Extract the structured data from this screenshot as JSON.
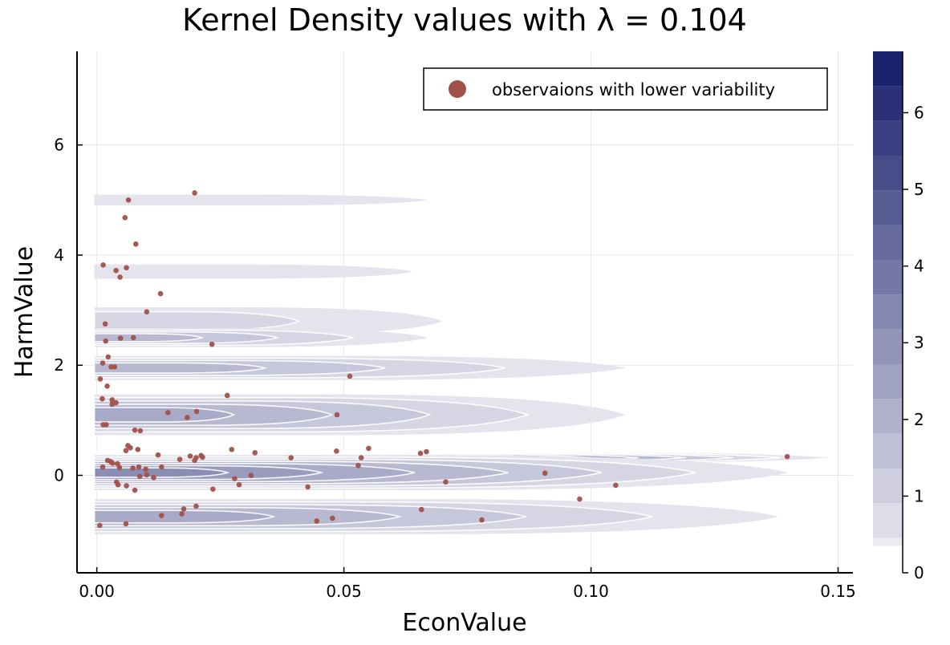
{
  "chart_data": {
    "type": "contour",
    "title": "Kernel Density values with λ = 0.104",
    "xlabel": "EconValue",
    "ylabel": "HarmValue",
    "xlim": [
      -0.004,
      0.153
    ],
    "ylim": [
      -1.77,
      7.7
    ],
    "x_ticks": [
      0.0,
      0.05,
      0.1,
      0.15
    ],
    "x_tick_labels": [
      "0.00",
      "0.05",
      "0.10",
      "0.15"
    ],
    "y_ticks": [
      0,
      2,
      4,
      6
    ],
    "y_tick_labels": [
      "0",
      "2",
      "4",
      "6"
    ],
    "grid": true,
    "legend": {
      "placement": "top-right",
      "entries": [
        {
          "name": "observaions with lower variability",
          "color": "#a0524a",
          "marker": "circle"
        }
      ]
    },
    "colorbar": {
      "min": 0,
      "max": 6.8,
      "ticks": [
        0,
        1,
        2,
        3,
        4,
        5,
        6
      ],
      "tick_labels": [
        "0",
        "1",
        "2",
        "3",
        "4",
        "5",
        "6"
      ],
      "levels": 15,
      "color_low": "#f3f2f6",
      "color_high": "#141b68"
    },
    "density_bands": [
      {
        "y_center": 5.0,
        "half_height": 0.1,
        "x_extent": 0.067,
        "peak": 0.6
      },
      {
        "y_center": 3.7,
        "half_height": 0.13,
        "x_extent": 0.064,
        "peak": 0.6
      },
      {
        "y_center": 2.8,
        "half_height": 0.25,
        "x_extent": 0.07,
        "peak": 0.8
      },
      {
        "y_center": 2.5,
        "half_height": 0.17,
        "x_extent": 0.067,
        "peak": 1.9
      },
      {
        "y_center": 1.95,
        "half_height": 0.22,
        "x_extent": 0.107,
        "peak": 1.9
      },
      {
        "y_center": 1.1,
        "half_height": 0.37,
        "x_extent": 0.107,
        "peak": 2.1
      },
      {
        "y_center": 0.32,
        "half_height": 0.12,
        "x_extent": 0.148,
        "peak": 6.8
      },
      {
        "y_center": 0.05,
        "half_height": 0.32,
        "x_extent": 0.14,
        "peak": 3.0
      },
      {
        "y_center": -0.75,
        "half_height": 0.32,
        "x_extent": 0.138,
        "peak": 2.4
      }
    ],
    "series": [
      {
        "name": "observaions with lower variability",
        "type": "scatter",
        "color": "#a0524a",
        "points": [
          [
            0.0198,
            5.13
          ],
          [
            0.0064,
            5.0
          ],
          [
            0.0057,
            4.68
          ],
          [
            0.0079,
            4.2
          ],
          [
            0.0013,
            3.82
          ],
          [
            0.006,
            3.77
          ],
          [
            0.0039,
            3.72
          ],
          [
            0.0047,
            3.6
          ],
          [
            0.0129,
            3.3
          ],
          [
            0.0101,
            2.97
          ],
          [
            0.0017,
            2.75
          ],
          [
            0.0018,
            2.44
          ],
          [
            0.0048,
            2.49
          ],
          [
            0.0074,
            2.5
          ],
          [
            0.0233,
            2.38
          ],
          [
            0.0023,
            2.15
          ],
          [
            0.0012,
            2.04
          ],
          [
            0.0029,
            1.97
          ],
          [
            0.0036,
            1.97
          ],
          [
            0.0007,
            1.75
          ],
          [
            0.0512,
            1.8
          ],
          [
            0.0021,
            1.62
          ],
          [
            0.0264,
            1.45
          ],
          [
            0.0011,
            1.39
          ],
          [
            0.0031,
            1.37
          ],
          [
            0.0039,
            1.32
          ],
          [
            0.0031,
            1.29
          ],
          [
            0.0144,
            1.14
          ],
          [
            0.0202,
            1.16
          ],
          [
            0.0183,
            1.05
          ],
          [
            0.0486,
            1.1
          ],
          [
            0.0013,
            0.92
          ],
          [
            0.0019,
            0.92
          ],
          [
            0.0077,
            0.82
          ],
          [
            0.0088,
            0.81
          ],
          [
            0.0063,
            0.54
          ],
          [
            0.0068,
            0.5
          ],
          [
            0.0083,
            0.47
          ],
          [
            0.0059,
            0.45
          ],
          [
            0.0124,
            0.37
          ],
          [
            0.0273,
            0.47
          ],
          [
            0.032,
            0.41
          ],
          [
            0.0485,
            0.44
          ],
          [
            0.055,
            0.49
          ],
          [
            0.0655,
            0.4
          ],
          [
            0.0667,
            0.43
          ],
          [
            0.0535,
            0.32
          ],
          [
            0.0189,
            0.35
          ],
          [
            0.0211,
            0.36
          ],
          [
            0.0201,
            0.32
          ],
          [
            0.0214,
            0.33
          ],
          [
            0.0168,
            0.29
          ],
          [
            0.0198,
            0.27
          ],
          [
            0.0042,
            0.21
          ],
          [
            0.0022,
            0.27
          ],
          [
            0.0028,
            0.25
          ],
          [
            0.0032,
            0.22
          ],
          [
            0.0012,
            0.15
          ],
          [
            0.0046,
            0.14
          ],
          [
            0.0085,
            0.15
          ],
          [
            0.0073,
            0.13
          ],
          [
            0.0099,
            0.11
          ],
          [
            0.0131,
            0.15
          ],
          [
            0.0529,
            0.18
          ],
          [
            0.0393,
            0.32
          ],
          [
            0.0101,
            0.01
          ],
          [
            0.0115,
            -0.04
          ],
          [
            0.0087,
            -0.02
          ],
          [
            0.004,
            -0.12
          ],
          [
            0.0043,
            -0.17
          ],
          [
            0.006,
            -0.19
          ],
          [
            0.0077,
            -0.27
          ],
          [
            0.0279,
            -0.06
          ],
          [
            0.0288,
            -0.17
          ],
          [
            0.0312,
            0.0
          ],
          [
            0.0235,
            -0.25
          ],
          [
            0.0427,
            -0.21
          ],
          [
            0.0706,
            -0.12
          ],
          [
            0.0907,
            0.04
          ],
          [
            0.105,
            -0.18
          ],
          [
            0.0977,
            -0.43
          ],
          [
            0.1397,
            0.34
          ],
          [
            0.0131,
            -0.73
          ],
          [
            0.0176,
            -0.61
          ],
          [
            0.0172,
            -0.7
          ],
          [
            0.0201,
            -0.56
          ],
          [
            0.0657,
            -0.62
          ],
          [
            0.0445,
            -0.83
          ],
          [
            0.0477,
            -0.78
          ],
          [
            0.0779,
            -0.81
          ],
          [
            0.0006,
            -0.91
          ],
          [
            0.0059,
            -0.88
          ]
        ]
      }
    ]
  }
}
